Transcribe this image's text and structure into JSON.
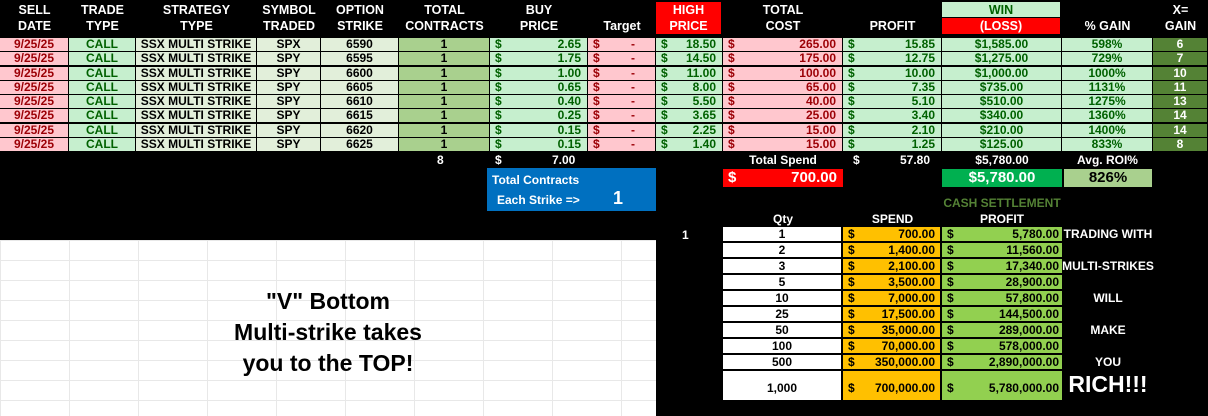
{
  "headers": {
    "sell_date": [
      "SELL",
      "DATE"
    ],
    "trade_type": [
      "TRADE",
      "TYPE"
    ],
    "strategy_type": [
      "STRATEGY",
      "TYPE"
    ],
    "symbol": [
      "SYMBOL",
      "TRADED"
    ],
    "option_strike": [
      "OPTION",
      "STRIKE"
    ],
    "total_contracts": [
      "TOTAL",
      "CONTRACTS"
    ],
    "buy_price": [
      "BUY",
      "PRICE"
    ],
    "target": "Target",
    "high_price": [
      "HIGH",
      "PRICE"
    ],
    "total_cost": [
      "TOTAL",
      "COST"
    ],
    "profit": "PROFIT",
    "win": "WIN",
    "loss": "(LOSS)",
    "pct_gain": "% GAIN",
    "x_gain": [
      "X=",
      "GAIN"
    ]
  },
  "rows": [
    {
      "date": "9/25/25",
      "type": "CALL",
      "strategy": "SSX MULTI STRIKE",
      "symbol": "SPX",
      "strike": "6590",
      "contracts": "1",
      "buy": "2.65",
      "target": "-",
      "high": "18.50",
      "cost": "265.00",
      "profit": "15.85",
      "win": "$1,585.00",
      "gain": "598%",
      "x": "6"
    },
    {
      "date": "9/25/25",
      "type": "CALL",
      "strategy": "SSX MULTI STRIKE",
      "symbol": "SPY",
      "strike": "6595",
      "contracts": "1",
      "buy": "1.75",
      "target": "-",
      "high": "14.50",
      "cost": "175.00",
      "profit": "12.75",
      "win": "$1,275.00",
      "gain": "729%",
      "x": "7"
    },
    {
      "date": "9/25/25",
      "type": "CALL",
      "strategy": "SSX MULTI STRIKE",
      "symbol": "SPY",
      "strike": "6600",
      "contracts": "1",
      "buy": "1.00",
      "target": "-",
      "high": "11.00",
      "cost": "100.00",
      "profit": "10.00",
      "win": "$1,000.00",
      "gain": "1000%",
      "x": "10"
    },
    {
      "date": "9/25/25",
      "type": "CALL",
      "strategy": "SSX MULTI STRIKE",
      "symbol": "SPY",
      "strike": "6605",
      "contracts": "1",
      "buy": "0.65",
      "target": "-",
      "high": "8.00",
      "cost": "65.00",
      "profit": "7.35",
      "win": "$735.00",
      "gain": "1131%",
      "x": "11"
    },
    {
      "date": "9/25/25",
      "type": "CALL",
      "strategy": "SSX MULTI STRIKE",
      "symbol": "SPY",
      "strike": "6610",
      "contracts": "1",
      "buy": "0.40",
      "target": "-",
      "high": "5.50",
      "cost": "40.00",
      "profit": "5.10",
      "win": "$510.00",
      "gain": "1275%",
      "x": "13"
    },
    {
      "date": "9/25/25",
      "type": "CALL",
      "strategy": "SSX MULTI STRIKE",
      "symbol": "SPY",
      "strike": "6615",
      "contracts": "1",
      "buy": "0.25",
      "target": "-",
      "high": "3.65",
      "cost": "25.00",
      "profit": "3.40",
      "win": "$340.00",
      "gain": "1360%",
      "x": "14"
    },
    {
      "date": "9/25/25",
      "type": "CALL",
      "strategy": "SSX MULTI STRIKE",
      "symbol": "SPY",
      "strike": "6620",
      "contracts": "1",
      "buy": "0.15",
      "target": "-",
      "high": "2.25",
      "cost": "15.00",
      "profit": "2.10",
      "win": "$210.00",
      "gain": "1400%",
      "x": "14"
    },
    {
      "date": "9/25/25",
      "type": "CALL",
      "strategy": "SSX MULTI STRIKE",
      "symbol": "SPY",
      "strike": "6625",
      "contracts": "1",
      "buy": "0.15",
      "target": "-",
      "high": "1.40",
      "cost": "15.00",
      "profit": "1.25",
      "win": "$125.00",
      "gain": "833%",
      "x": "8"
    }
  ],
  "totals": {
    "contracts": "8",
    "currency": "$",
    "buy": "7.00",
    "total_spend_label": "Total Spend",
    "profit": "57.80",
    "win": "$5,780.00",
    "avg_roi_label": "Avg. ROI%",
    "spend": "700.00",
    "win_box": "$5,780.00",
    "avg_roi": "826%"
  },
  "contracts_box": {
    "title": "Total Contracts",
    "each_label": "Each Strike =>",
    "each_value": "1"
  },
  "settlement": {
    "title": "CASH SETTLEMENT",
    "qty_header": "Qty",
    "spend_header": "SPEND",
    "profit_header": "PROFIT",
    "multiplier": "1",
    "rows": [
      {
        "qty": "1",
        "spend": "700.00",
        "profit": "5,780.00",
        "note": "TRADING WITH"
      },
      {
        "qty": "2",
        "spend": "1,400.00",
        "profit": "11,560.00",
        "note": ""
      },
      {
        "qty": "3",
        "spend": "2,100.00",
        "profit": "17,340.00",
        "note": "MULTI-STRIKES"
      },
      {
        "qty": "5",
        "spend": "3,500.00",
        "profit": "28,900.00",
        "note": ""
      },
      {
        "qty": "10",
        "spend": "7,000.00",
        "profit": "57,800.00",
        "note": "WILL"
      },
      {
        "qty": "25",
        "spend": "17,500.00",
        "profit": "144,500.00",
        "note": ""
      },
      {
        "qty": "50",
        "spend": "35,000.00",
        "profit": "289,000.00",
        "note": "MAKE"
      },
      {
        "qty": "100",
        "spend": "70,000.00",
        "profit": "578,000.00",
        "note": ""
      },
      {
        "qty": "500",
        "spend": "350,000.00",
        "profit": "2,890,000.00",
        "note": "YOU"
      },
      {
        "qty": "1,000",
        "spend": "700,000.00",
        "profit": "5,780,000.00",
        "note": "RICH!!!"
      }
    ]
  },
  "banner": {
    "line1": "\"V\" Bottom",
    "line2": "Multi-strike takes",
    "line3": "you to the TOP!"
  },
  "colors": {
    "pink": "#ffc7ce",
    "green": "#c6efce",
    "red": "#ff0000",
    "blue": "#0070c0",
    "dark_green": "#548235",
    "orange": "#ffc000",
    "lime": "#92d050"
  }
}
